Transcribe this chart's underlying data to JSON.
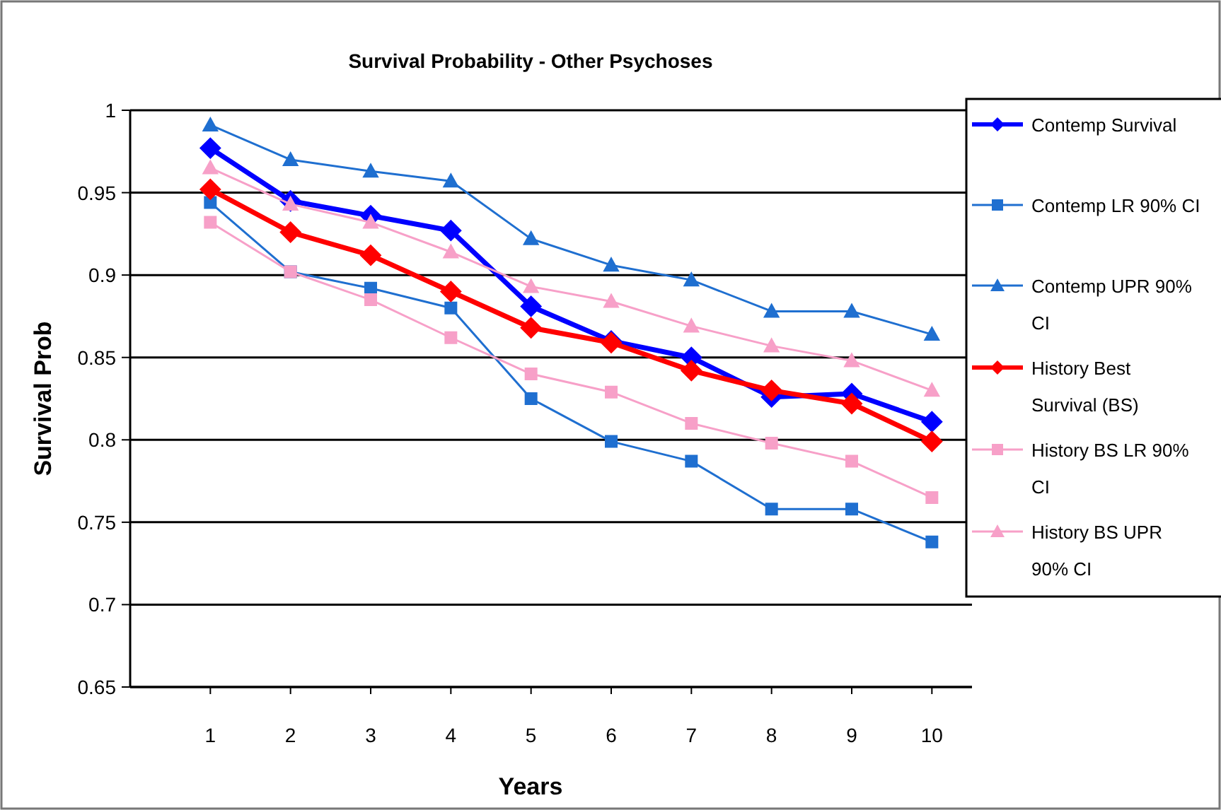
{
  "chart_data": {
    "type": "line",
    "title": "Survival Probability - Other Psychoses",
    "xlabel": "Years",
    "ylabel": "Survival Prob",
    "x": [
      1,
      2,
      3,
      4,
      5,
      6,
      7,
      8,
      9,
      10
    ],
    "xlim": [
      0,
      10.5
    ],
    "xticks": [
      1,
      2,
      3,
      4,
      5,
      6,
      7,
      8,
      9,
      10
    ],
    "ylim": [
      0.65,
      1
    ],
    "yticks": [
      0.65,
      0.7,
      0.75,
      0.8,
      0.85,
      0.9,
      0.95,
      1
    ],
    "grid": "y",
    "legend": "right",
    "line_style": "solid",
    "series": [
      {
        "name": "Contemp Survival",
        "color": "#0000ff",
        "marker": "diamond",
        "values": [
          0.977,
          0.945,
          0.936,
          0.927,
          0.881,
          0.86,
          0.85,
          0.826,
          0.828,
          0.811
        ]
      },
      {
        "name": "Contemp LR 90% CI",
        "color": "#1f6fd0",
        "marker": "square",
        "values": [
          0.944,
          0.902,
          0.892,
          0.88,
          0.825,
          0.799,
          0.787,
          0.758,
          0.758,
          0.738
        ]
      },
      {
        "name": "Contemp UPR 90% CI",
        "color": "#1f6fd0",
        "marker": "triangle",
        "values": [
          0.991,
          0.97,
          0.963,
          0.957,
          0.922,
          0.906,
          0.897,
          0.878,
          0.878,
          0.864
        ]
      },
      {
        "name": "History Best Survival (BS)",
        "color": "#ff0000",
        "marker": "diamond",
        "values": [
          0.952,
          0.926,
          0.912,
          0.89,
          0.868,
          0.859,
          0.842,
          0.83,
          0.822,
          0.799
        ]
      },
      {
        "name": "History BS LR 90% CI",
        "color": "#f7a0c8",
        "marker": "square",
        "values": [
          0.932,
          0.902,
          0.885,
          0.862,
          0.84,
          0.829,
          0.81,
          0.798,
          0.787,
          0.765
        ]
      },
      {
        "name": "History BS UPR 90% CI",
        "color": "#f7a0c8",
        "marker": "triangle",
        "values": [
          0.965,
          0.943,
          0.932,
          0.914,
          0.893,
          0.884,
          0.869,
          0.857,
          0.848,
          0.83
        ]
      }
    ]
  }
}
